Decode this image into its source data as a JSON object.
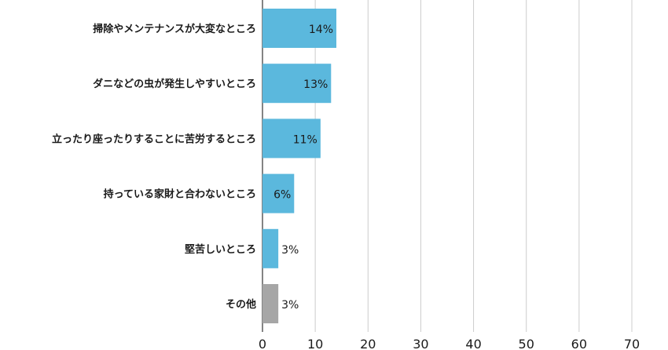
{
  "chart_data": {
    "type": "bar",
    "orientation": "horizontal",
    "categories": [
      "掃除やメンテナンスが大変なところ",
      "ダニなどの虫が発生しやすいところ",
      "立ったり座ったりすることに苦労するところ",
      "持っている家財と合わないところ",
      "堅苦しいところ",
      "その他"
    ],
    "values": [
      14,
      13,
      11,
      6,
      3,
      3
    ],
    "data_labels": [
      "14%",
      "13%",
      "11%",
      "6%",
      "3%",
      "3%"
    ],
    "xlim": [
      0,
      70
    ],
    "x_ticks": [
      0,
      10,
      20,
      30,
      40,
      50,
      60,
      70
    ],
    "grid": true,
    "colors": {
      "bar": "#5bb8dd",
      "other_bar": "#a6a6a6",
      "grid": "#cccccc",
      "axis": "#333333"
    },
    "title": "",
    "xlabel": "",
    "ylabel": ""
  }
}
